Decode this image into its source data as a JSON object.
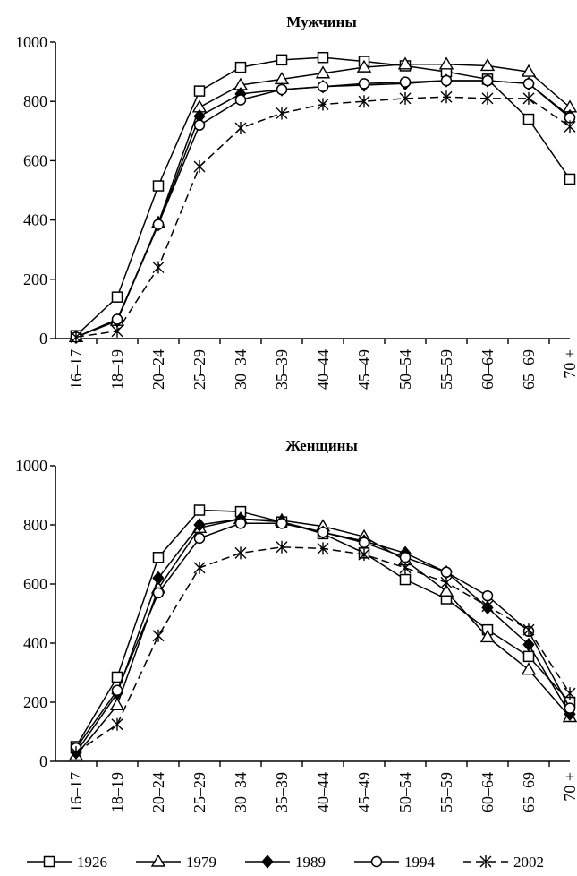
{
  "chart_data": [
    {
      "type": "line",
      "title": "Мужчины",
      "categories": [
        "16–17",
        "18–19",
        "20–24",
        "25–29",
        "30–34",
        "35–39",
        "40–44",
        "45–49",
        "50–54",
        "55–59",
        "60–64",
        "65–69",
        "70 +"
      ],
      "ylim": [
        0,
        1000
      ],
      "yticks": [
        "0",
        "200",
        "400",
        "600",
        "800",
        "1000"
      ],
      "series": [
        {
          "name": "1926",
          "marker": "square",
          "dashed": false,
          "values": [
            10,
            140,
            515,
            835,
            915,
            940,
            948,
            935,
            920,
            900,
            875,
            740,
            538
          ]
        },
        {
          "name": "1979",
          "marker": "triangle",
          "dashed": false,
          "values": [
            5,
            60,
            390,
            780,
            855,
            875,
            895,
            915,
            925,
            925,
            920,
            900,
            780
          ]
        },
        {
          "name": "1989",
          "marker": "diamond",
          "dashed": false,
          "values": [
            5,
            60,
            385,
            750,
            825,
            840,
            850,
            855,
            860,
            870,
            870,
            860,
            750
          ]
        },
        {
          "name": "1994",
          "marker": "circle",
          "dashed": false,
          "values": [
            5,
            65,
            385,
            720,
            805,
            840,
            850,
            860,
            865,
            870,
            870,
            860,
            745
          ]
        },
        {
          "name": "2002",
          "marker": "asterisk",
          "dashed": true,
          "values": [
            5,
            25,
            240,
            580,
            710,
            760,
            790,
            800,
            810,
            815,
            810,
            810,
            715
          ]
        }
      ]
    },
    {
      "type": "line",
      "title": "Женщины",
      "categories": [
        "16–17",
        "18–19",
        "20–24",
        "25–29",
        "30–34",
        "35–39",
        "40–44",
        "45–49",
        "50–54",
        "55–59",
        "60–64",
        "65–69",
        "70 +"
      ],
      "ylim": [
        0,
        1000
      ],
      "yticks": [
        "0",
        "200",
        "400",
        "600",
        "800",
        "1000"
      ],
      "series": [
        {
          "name": "1926",
          "marker": "square",
          "dashed": false,
          "values": [
            50,
            285,
            690,
            850,
            845,
            810,
            770,
            705,
            615,
            550,
            445,
            355,
            200
          ]
        },
        {
          "name": "1979",
          "marker": "triangle",
          "dashed": false,
          "values": [
            20,
            190,
            585,
            790,
            820,
            815,
            795,
            760,
            680,
            575,
            420,
            310,
            150
          ]
        },
        {
          "name": "1989",
          "marker": "diamond",
          "dashed": false,
          "values": [
            30,
            230,
            620,
            800,
            820,
            810,
            775,
            745,
            705,
            640,
            520,
            395,
            160
          ]
        },
        {
          "name": "1994",
          "marker": "circle",
          "dashed": false,
          "values": [
            45,
            240,
            570,
            755,
            805,
            805,
            775,
            740,
            690,
            640,
            560,
            440,
            180
          ]
        },
        {
          "name": "2002",
          "marker": "asterisk",
          "dashed": true,
          "values": [
            30,
            125,
            425,
            655,
            705,
            725,
            720,
            700,
            655,
            605,
            525,
            445,
            230
          ]
        }
      ]
    }
  ],
  "legend": [
    {
      "label": "1926",
      "marker": "square",
      "dashed": false
    },
    {
      "label": "1979",
      "marker": "triangle",
      "dashed": false
    },
    {
      "label": "1989",
      "marker": "diamond",
      "dashed": false
    },
    {
      "label": "1994",
      "marker": "circle",
      "dashed": false
    },
    {
      "label": "2002",
      "marker": "asterisk",
      "dashed": true
    }
  ]
}
